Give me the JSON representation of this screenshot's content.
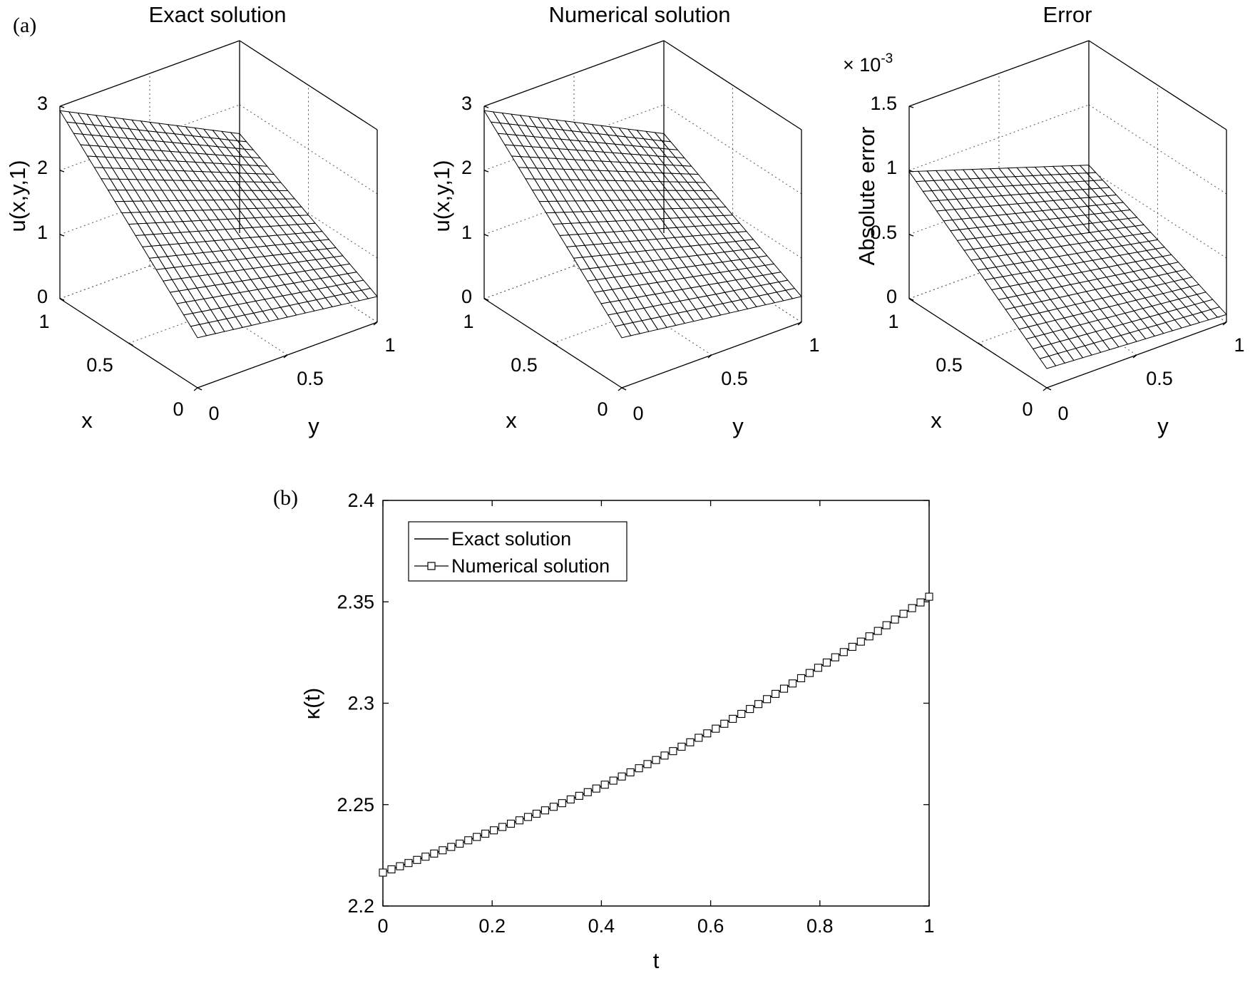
{
  "panel_a_label": "(a)",
  "panel_b_label": "(b)",
  "chart_data": [
    {
      "type": "surface",
      "title": "Exact solution",
      "xlabel": "x",
      "ylabel": "y",
      "zlabel": "u(x,y,1)",
      "x_ticks": [
        "0",
        "0.5",
        "1"
      ],
      "y_ticks": [
        "0",
        "0.5",
        "1"
      ],
      "z_ticks": [
        "0",
        "1",
        "2",
        "3"
      ],
      "zlim": [
        0,
        3
      ],
      "grid_n": 20,
      "corner_values": {
        "x0_y0": 0.78,
        "x1_y0": 2.93,
        "x0_y1": 0.4,
        "x1_y1": 1.55
      }
    },
    {
      "type": "surface",
      "title": "Numerical solution",
      "xlabel": "x",
      "ylabel": "y",
      "zlabel": "u(x,y,1)",
      "x_ticks": [
        "0",
        "0.5",
        "1"
      ],
      "y_ticks": [
        "0",
        "0.5",
        "1"
      ],
      "z_ticks": [
        "0",
        "1",
        "2",
        "3"
      ],
      "zlim": [
        0,
        3
      ],
      "grid_n": 20,
      "corner_values": {
        "x0_y0": 0.78,
        "x1_y0": 2.93,
        "x0_y1": 0.4,
        "x1_y1": 1.55
      }
    },
    {
      "type": "surface",
      "title": "Error",
      "xlabel": "x",
      "ylabel": "y",
      "zlabel": "Absolute error",
      "z_exponent": "× 10",
      "z_exponent_power": "-3",
      "x_ticks": [
        "0",
        "0.5",
        "1"
      ],
      "y_ticks": [
        "0",
        "0.5",
        "1"
      ],
      "z_ticks": [
        "0",
        "0.5",
        "1",
        "1.5"
      ],
      "zlim": [
        0,
        1.5
      ],
      "grid_n": 20,
      "corner_values": {
        "x0_y0": 0.15,
        "x1_y0": 0.99,
        "x0_y1": 0.06,
        "x1_y1": 0.53
      }
    },
    {
      "type": "line",
      "xlabel": "t",
      "ylabel": "κ(t)",
      "xlim": [
        0,
        1
      ],
      "ylim": [
        2.2,
        2.4
      ],
      "x_ticks": [
        "0",
        "0.2",
        "0.4",
        "0.6",
        "0.8",
        "1"
      ],
      "y_ticks": [
        "2.2",
        "2.25",
        "2.3",
        "2.35",
        "2.4"
      ],
      "legend_position": "top-left",
      "series": [
        {
          "name": "Exact solution",
          "style": "solid line",
          "x": [
            0,
            0.1,
            0.2,
            0.3,
            0.4,
            0.5,
            0.6,
            0.7,
            0.8,
            0.9,
            1.0
          ],
          "y": [
            2.2165,
            2.2265,
            2.237,
            2.2475,
            2.259,
            2.272,
            2.286,
            2.3015,
            2.318,
            2.3345,
            2.3525
          ]
        },
        {
          "name": "Numerical solution",
          "style": "line with square markers",
          "marker_count": 65,
          "x": [
            0,
            0.1,
            0.2,
            0.3,
            0.4,
            0.5,
            0.6,
            0.7,
            0.8,
            0.9,
            1.0
          ],
          "y": [
            2.2165,
            2.2265,
            2.237,
            2.2475,
            2.259,
            2.272,
            2.286,
            2.3015,
            2.318,
            2.3345,
            2.3525
          ]
        }
      ]
    }
  ]
}
